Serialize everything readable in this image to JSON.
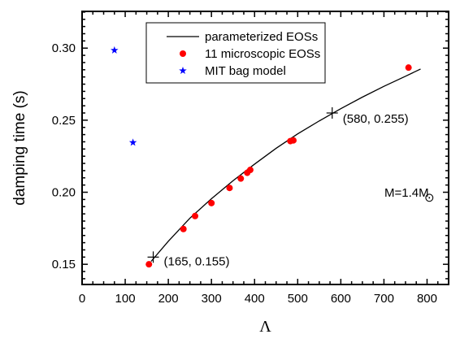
{
  "chart_data": {
    "type": "scatter",
    "xlabel": "Λ",
    "ylabel": "damping time (s)",
    "xlim": [
      0,
      850
    ],
    "ylim": [
      0.136,
      0.3255
    ],
    "x_ticks": [
      0,
      100,
      200,
      300,
      400,
      500,
      600,
      700,
      800
    ],
    "y_ticks": [
      0.15,
      0.2,
      0.25,
      0.3
    ],
    "x_tick_labels": [
      "0",
      "100",
      "200",
      "300",
      "400",
      "500",
      "600",
      "700",
      "800"
    ],
    "y_tick_labels": [
      "0.15",
      "0.20",
      "0.25",
      "0.30"
    ],
    "grid": false,
    "legend_position": "top-center",
    "legend": [
      {
        "label": "parameterized EOSs",
        "marker": "line",
        "color": "#000000"
      },
      {
        "label": "11 microscopic EOSs",
        "marker": "circle",
        "color": "#ff0000"
      },
      {
        "label": "MIT bag model",
        "marker": "star",
        "color": "#0000ff"
      }
    ],
    "series": [
      {
        "name": "parameterized EOSs",
        "type": "line",
        "color": "#000000",
        "x": [
          160,
          200,
          250,
          300,
          350,
          400,
          450,
          500,
          550,
          600,
          650,
          700,
          750,
          785
        ],
        "y": [
          0.152,
          0.166,
          0.182,
          0.1955,
          0.208,
          0.2195,
          0.2305,
          0.2405,
          0.2495,
          0.258,
          0.266,
          0.2735,
          0.2805,
          0.2855
        ]
      },
      {
        "name": "11 microscopic EOSs",
        "type": "scatter",
        "color": "#ff0000",
        "x": [
          155,
          235,
          262,
          300,
          342,
          368,
          383,
          390,
          483,
          490,
          757
        ],
        "y": [
          0.15,
          0.1745,
          0.1835,
          0.1925,
          0.203,
          0.2095,
          0.2135,
          0.2155,
          0.2355,
          0.236,
          0.2865
        ]
      },
      {
        "name": "MIT bag model",
        "type": "scatter",
        "color": "#0000ff",
        "x": [
          75,
          118
        ],
        "y": [
          0.2985,
          0.2345
        ]
      }
    ],
    "annotations": [
      {
        "text": "(165, 0.155)",
        "x": 165,
        "y": 0.155
      },
      {
        "text": "(580, 0.255)",
        "x": 580,
        "y": 0.255
      },
      {
        "text": "M=1.4M",
        "subscript": "⊙"
      }
    ]
  }
}
